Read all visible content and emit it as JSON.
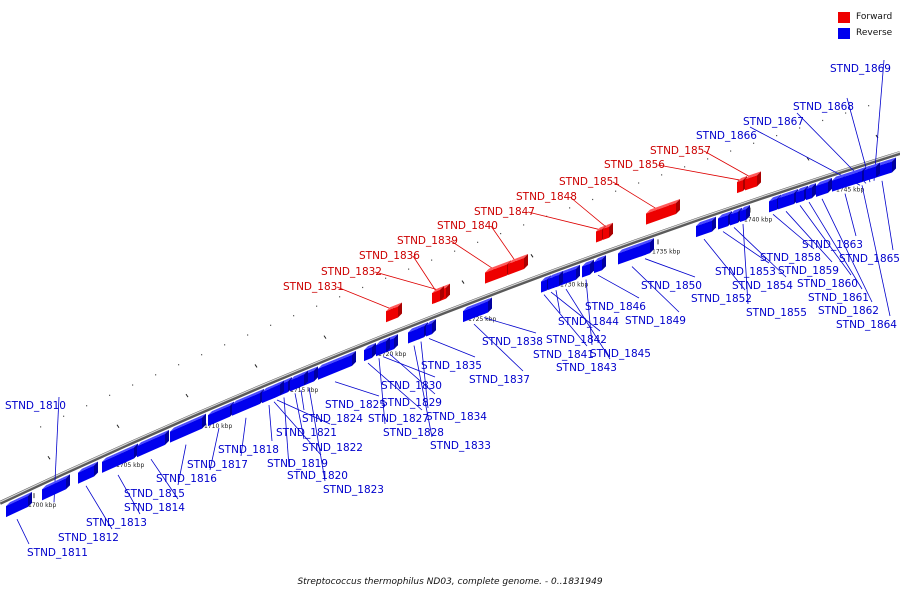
{
  "legend": {
    "forward_label": "Forward",
    "reverse_label": "Reverse",
    "forward_color": "#ff0000",
    "reverse_color": "#0000ff"
  },
  "caption": "Streptococcus thermophilus ND03, complete genome. - 0..1831949",
  "axis_ticks": [
    "1700 kbp",
    "1705 kbp",
    "1710 kbp",
    "1715 kbp",
    "1720 kbp",
    "1725 kbp",
    "1730 kbp",
    "1735 kbp",
    "1740 kbp",
    "1745 kbp"
  ],
  "genes": [
    {
      "name": "STND_1810",
      "strand": "reverse"
    },
    {
      "name": "STND_1811",
      "strand": "reverse"
    },
    {
      "name": "STND_1812",
      "strand": "reverse"
    },
    {
      "name": "STND_1813",
      "strand": "reverse"
    },
    {
      "name": "STND_1814",
      "strand": "reverse"
    },
    {
      "name": "STND_1815",
      "strand": "reverse"
    },
    {
      "name": "STND_1816",
      "strand": "reverse"
    },
    {
      "name": "STND_1817",
      "strand": "reverse"
    },
    {
      "name": "STND_1818",
      "strand": "reverse"
    },
    {
      "name": "STND_1819",
      "strand": "reverse"
    },
    {
      "name": "STND_1820",
      "strand": "reverse"
    },
    {
      "name": "STND_1821",
      "strand": "reverse"
    },
    {
      "name": "STND_1822",
      "strand": "reverse"
    },
    {
      "name": "STND_1823",
      "strand": "reverse"
    },
    {
      "name": "STND_1824",
      "strand": "reverse"
    },
    {
      "name": "STND_1825",
      "strand": "reverse"
    },
    {
      "name": "STND_1827",
      "strand": "reverse"
    },
    {
      "name": "STND_1828",
      "strand": "reverse"
    },
    {
      "name": "STND_1829",
      "strand": "reverse"
    },
    {
      "name": "STND_1830",
      "strand": "reverse"
    },
    {
      "name": "STND_1831",
      "strand": "forward"
    },
    {
      "name": "STND_1832",
      "strand": "forward"
    },
    {
      "name": "STND_1833",
      "strand": "reverse"
    },
    {
      "name": "STND_1834",
      "strand": "reverse"
    },
    {
      "name": "STND_1835",
      "strand": "reverse"
    },
    {
      "name": "STND_1836",
      "strand": "forward"
    },
    {
      "name": "STND_1837",
      "strand": "reverse"
    },
    {
      "name": "STND_1838",
      "strand": "reverse"
    },
    {
      "name": "STND_1839",
      "strand": "forward"
    },
    {
      "name": "STND_1840",
      "strand": "forward"
    },
    {
      "name": "STND_1841",
      "strand": "reverse"
    },
    {
      "name": "STND_1842",
      "strand": "reverse"
    },
    {
      "name": "STND_1843",
      "strand": "reverse"
    },
    {
      "name": "STND_1844",
      "strand": "reverse"
    },
    {
      "name": "STND_1845",
      "strand": "reverse"
    },
    {
      "name": "STND_1846",
      "strand": "reverse"
    },
    {
      "name": "STND_1847",
      "strand": "forward"
    },
    {
      "name": "STND_1848",
      "strand": "forward"
    },
    {
      "name": "STND_1849",
      "strand": "reverse"
    },
    {
      "name": "STND_1850",
      "strand": "reverse"
    },
    {
      "name": "STND_1851",
      "strand": "forward"
    },
    {
      "name": "STND_1852",
      "strand": "reverse"
    },
    {
      "name": "STND_1853",
      "strand": "reverse"
    },
    {
      "name": "STND_1854",
      "strand": "reverse"
    },
    {
      "name": "STND_1855",
      "strand": "reverse"
    },
    {
      "name": "STND_1856",
      "strand": "forward"
    },
    {
      "name": "STND_1857",
      "strand": "forward"
    },
    {
      "name": "STND_1858",
      "strand": "reverse"
    },
    {
      "name": "STND_1859",
      "strand": "reverse"
    },
    {
      "name": "STND_1860",
      "strand": "reverse"
    },
    {
      "name": "STND_1861",
      "strand": "reverse"
    },
    {
      "name": "STND_1862",
      "strand": "reverse"
    },
    {
      "name": "STND_1863",
      "strand": "reverse"
    },
    {
      "name": "STND_1864",
      "strand": "reverse"
    },
    {
      "name": "STND_1865",
      "strand": "reverse"
    },
    {
      "name": "STND_1866",
      "strand": "reverse"
    },
    {
      "name": "STND_1867",
      "strand": "reverse"
    },
    {
      "name": "STND_1868",
      "strand": "reverse"
    },
    {
      "name": "STND_1869",
      "strand": "reverse"
    }
  ]
}
